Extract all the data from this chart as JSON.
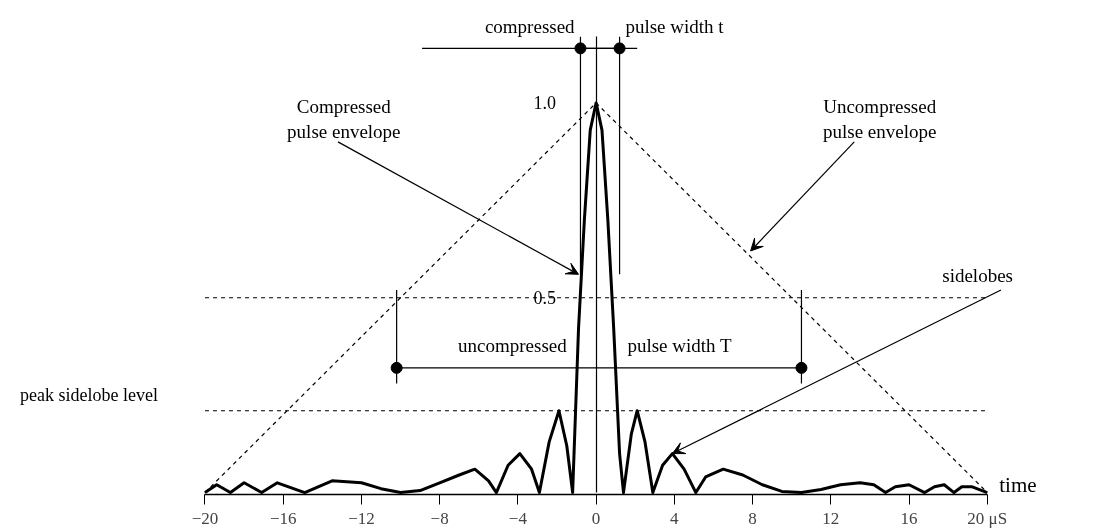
{
  "chart_data": {
    "type": "line",
    "xlabel": "time",
    "xlim": [
      -20,
      20
    ],
    "ylim": [
      0,
      1.17
    ],
    "yticks": [
      0.5,
      {
        "value": 1.0,
        "label": "1.0"
      }
    ],
    "xticks": [
      -20,
      -16,
      -12,
      -8,
      -4,
      0,
      4,
      8,
      12,
      16,
      {
        "value": 20,
        "label": "20 μS"
      }
    ],
    "grid": false,
    "series": [
      {
        "color": "#000000",
        "x": [
          -20,
          -19.4,
          -18.7,
          -18,
          -17.1,
          -16.3,
          -14.9,
          -13.5,
          -12,
          -11,
          -10,
          -9,
          -8,
          -7,
          -6.2,
          -5.5,
          -5.1,
          -4.5,
          -3.9,
          -3.3,
          -2.9,
          -2.4,
          -1.9,
          -1.5,
          -1.2,
          -0.9,
          -0.6,
          -0.3,
          0,
          0.3,
          0.6,
          0.9,
          1.2,
          1.4,
          1.8,
          2.1,
          2.5,
          2.9,
          3.4,
          3.9,
          4.5,
          5.1,
          5.6,
          6.5,
          7.5,
          8.5,
          9.5,
          10.5,
          11.5,
          12.5,
          13.5,
          14.2,
          14.8,
          15.3,
          16,
          16.8,
          17.3,
          17.8,
          18.3,
          18.7,
          19.2,
          20
        ],
        "values": [
          0,
          0.02,
          0,
          0.025,
          0,
          0.025,
          0,
          0.03,
          0.025,
          0.01,
          0,
          0.005,
          0.025,
          0.045,
          0.06,
          0.03,
          0,
          0.07,
          0.1,
          0.06,
          0,
          0.13,
          0.21,
          0.12,
          0,
          0.42,
          0.7,
          0.93,
          1.0,
          0.93,
          0.7,
          0.42,
          0.1,
          0,
          0.15,
          0.21,
          0.13,
          0,
          0.07,
          0.1,
          0.06,
          0,
          0.04,
          0.06,
          0.045,
          0.02,
          0.003,
          0,
          0.008,
          0.02,
          0.025,
          0.02,
          0,
          0.015,
          0.02,
          0,
          0.015,
          0.02,
          0,
          0.015,
          0.015,
          0
        ]
      },
      {
        "color": "#000000",
        "line_style": "dashed",
        "x": [
          -20,
          0,
          20
        ],
        "values": [
          0,
          1,
          0
        ]
      },
      {
        "color": "#000000",
        "x": [
          -8.9,
          2.1
        ],
        "values": [
          1.14,
          1.14
        ]
      },
      {
        "color": "#000000",
        "marker": "circle",
        "x": [
          -0.8,
          1.2
        ],
        "values": [
          1.14,
          1.14
        ]
      },
      {
        "color": "#000000",
        "x": [
          -0.8,
          -0.8
        ],
        "values": [
          0.56,
          1.17
        ]
      },
      {
        "color": "#000000",
        "x": [
          1.2,
          1.2
        ],
        "values": [
          0.56,
          1.17
        ]
      },
      {
        "color": "#000000",
        "marker": "circle",
        "x": [
          -10.2,
          10.5
        ],
        "values": [
          0.32,
          0.32
        ]
      },
      {
        "color": "#000000",
        "x": [
          -10.2,
          -10.2
        ],
        "values": [
          0.28,
          0.52
        ]
      },
      {
        "color": "#000000",
        "x": [
          10.5,
          10.5
        ],
        "values": [
          0.28,
          0.52
        ]
      }
    ],
    "ref_lines": [
      {
        "axis": "y",
        "value": 0.5,
        "line_style": "dashed",
        "color": "#000000"
      },
      {
        "axis": "y",
        "value": 0.21,
        "label": "peak sidelobe level",
        "line_style": "dashed",
        "color": "#000000"
      }
    ],
    "annotations": [
      {
        "text": "Compressed\npulse envelope",
        "x": -0.9,
        "y": 0.56
      },
      {
        "text": "Uncompressed\npulse envelope",
        "x": 7.9,
        "y": 0.62
      },
      {
        "text": "sidelobes",
        "x": 3.9,
        "y": 0.1
      },
      {
        "text": "compressed",
        "x": -0.8,
        "y": 1.14
      },
      {
        "text": "pulse width t",
        "x": 1.2,
        "y": 1.14
      },
      {
        "text": "uncompressed",
        "x": -1.3,
        "y": 0.32
      },
      {
        "text": "pulse width T",
        "x": 1.6,
        "y": 0.32
      }
    ]
  }
}
